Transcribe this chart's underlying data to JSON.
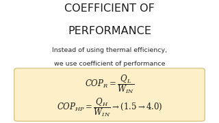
{
  "title_line1": "COEFFICIENT OF",
  "title_line2": "PERFORMANCE",
  "subtitle_line1": "Instead of using thermal efficiency,",
  "subtitle_line2": "we use coefficient of performance",
  "formula1": "$COP_{R} = \\dfrac{Q_{L}}{W_{IN}}$",
  "formula2": "$COP_{HP} = \\dfrac{Q_{H}}{W_{IN}} \\rightarrow \\left(1.5 \\rightarrow 4.0\\right)$",
  "bg_color": "#ffffff",
  "box_color": "#fdf0c8",
  "title_color": "#1a1a1a",
  "subtitle_color": "#2a2a2a",
  "formula_color": "#1a1a1a",
  "title_fontsize": 11.5,
  "subtitle_fontsize": 6.8,
  "formula_fontsize": 8.5
}
